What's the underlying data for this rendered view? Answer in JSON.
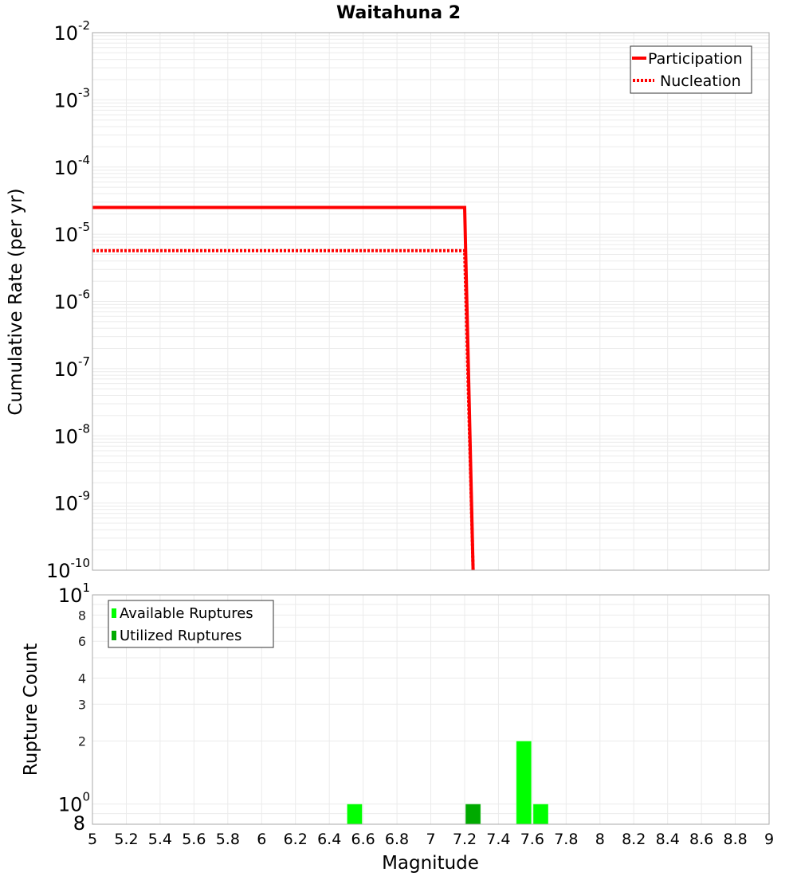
{
  "title": "Waitahuna 2",
  "top_chart": {
    "ylabel": "Cumulative Rate (per yr)",
    "legend": {
      "participation_label": "Participation",
      "nucleation_label": "Nucleation"
    }
  },
  "bottom_chart": {
    "ylabel": "Rupture Count",
    "xlabel": "Magnitude",
    "legend": {
      "available_label": "Available Ruptures",
      "utilized_label": "Utilized Ruptures"
    }
  },
  "colors": {
    "participation": "#FF0000",
    "nucleation": "#FF0000",
    "available": "#00FF00",
    "utilized": "#00AA00",
    "grid": "#EBEBEB",
    "plot_border": "#A8A8A8",
    "legend_border": "#333333"
  },
  "chart_data": [
    {
      "id": "cumulative-rate",
      "type": "line",
      "title": "Waitahuna 2",
      "xlabel": "",
      "ylabel": "Cumulative Rate (per yr)",
      "xlim": [
        5,
        9
      ],
      "ylim": [
        1e-10,
        0.01
      ],
      "yscale": "log",
      "grid": true,
      "legend_position": "top-right",
      "yticks": [
        {
          "value": 0.01,
          "base": "10",
          "exp": "-2"
        },
        {
          "value": 0.001,
          "base": "10",
          "exp": "-3"
        },
        {
          "value": 0.0001,
          "base": "10",
          "exp": "-4"
        },
        {
          "value": 1e-05,
          "base": "10",
          "exp": "-5"
        },
        {
          "value": 1e-06,
          "base": "10",
          "exp": "-6"
        },
        {
          "value": 1e-07,
          "base": "10",
          "exp": "-7"
        },
        {
          "value": 1e-08,
          "base": "10",
          "exp": "-8"
        },
        {
          "value": 1e-09,
          "base": "10",
          "exp": "-9"
        },
        {
          "value": 1e-10,
          "base": "10",
          "exp": "-10"
        }
      ],
      "series": [
        {
          "name": "Participation",
          "style": "solid",
          "points": [
            [
              5.0,
              2.5e-05
            ],
            [
              7.2,
              2.5e-05
            ],
            [
              7.25,
              1e-10
            ]
          ]
        },
        {
          "name": "Nucleation",
          "style": "dotted",
          "points": [
            [
              5.0,
              5.7e-06
            ],
            [
              7.2,
              5.7e-06
            ],
            [
              7.25,
              1e-10
            ]
          ]
        }
      ]
    },
    {
      "id": "rupture-count",
      "type": "bar",
      "xlabel": "Magnitude",
      "ylabel": "Rupture Count",
      "xlim": [
        5,
        9
      ],
      "ylim": [
        0.8,
        10
      ],
      "yscale": "log",
      "grid": true,
      "legend_position": "top-left",
      "bin_width": 0.1,
      "xticks": [
        "5",
        "5.2",
        "5.4",
        "5.6",
        "5.8",
        "6",
        "6.2",
        "6.4",
        "6.6",
        "6.8",
        "7",
        "7.2",
        "7.4",
        "7.6",
        "7.8",
        "8",
        "8.2",
        "8.4",
        "8.6",
        "8.8",
        "9"
      ],
      "yticks": [
        {
          "value": 10,
          "base": "10",
          "exp": "1",
          "size": "big"
        },
        {
          "value": 8,
          "label": "8",
          "size": "small"
        },
        {
          "value": 6,
          "label": "6",
          "size": "small"
        },
        {
          "value": 4,
          "label": "4",
          "size": "small"
        },
        {
          "value": 3,
          "label": "3",
          "size": "small"
        },
        {
          "value": 2,
          "label": "2",
          "size": "small"
        },
        {
          "value": 1,
          "base": "10",
          "exp": "0",
          "size": "big"
        },
        {
          "value": 0.8,
          "label": "8",
          "size": "big"
        }
      ],
      "series": [
        {
          "name": "Available Ruptures",
          "bins": [
            [
              6.55,
              1
            ],
            [
              7.25,
              1
            ],
            [
              7.55,
              2
            ],
            [
              7.65,
              1
            ]
          ]
        },
        {
          "name": "Utilized Ruptures",
          "bins": [
            [
              7.25,
              1
            ]
          ]
        }
      ]
    }
  ]
}
